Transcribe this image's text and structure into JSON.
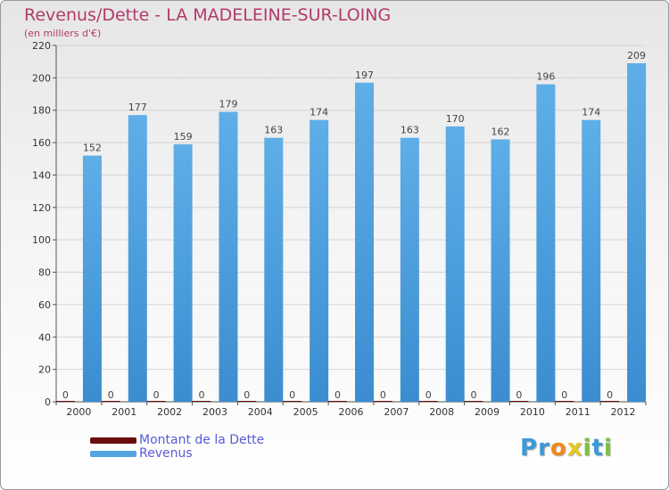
{
  "chart_data": {
    "type": "bar",
    "title": "Revenus/Dette - LA MADELEINE-SUR-LOING",
    "subtitle": "(en milliers d'€)",
    "categories": [
      "2000",
      "2001",
      "2002",
      "2003",
      "2004",
      "2005",
      "2006",
      "2007",
      "2008",
      "2009",
      "2010",
      "2011",
      "2012"
    ],
    "series": [
      {
        "name": "Montant de la Dette",
        "color": "#6b0c0c",
        "values": [
          0,
          0,
          0,
          0,
          0,
          0,
          0,
          0,
          0,
          0,
          0,
          0,
          0
        ]
      },
      {
        "name": "Revenus",
        "color": "#55a5e2",
        "values": [
          152,
          177,
          159,
          179,
          163,
          174,
          197,
          163,
          170,
          162,
          196,
          174,
          209
        ]
      }
    ],
    "ylim": [
      0,
      220
    ],
    "yticks": [
      0,
      20,
      40,
      60,
      80,
      100,
      120,
      140,
      160,
      180,
      200,
      220
    ],
    "xlabel": "",
    "ylabel": "",
    "grid": true,
    "legend": "bottom-left"
  },
  "logo": {
    "letters": [
      {
        "ch": "P",
        "color": "#3a9ad9"
      },
      {
        "ch": "r",
        "color": "#3a9ad9"
      },
      {
        "ch": "o",
        "color": "#f08a1c"
      },
      {
        "ch": "x",
        "color": "#e8c81e"
      },
      {
        "ch": "i",
        "color": "#7cc242"
      },
      {
        "ch": "t",
        "color": "#3a9ad9"
      },
      {
        "ch": "i",
        "color": "#7cc242"
      }
    ]
  }
}
